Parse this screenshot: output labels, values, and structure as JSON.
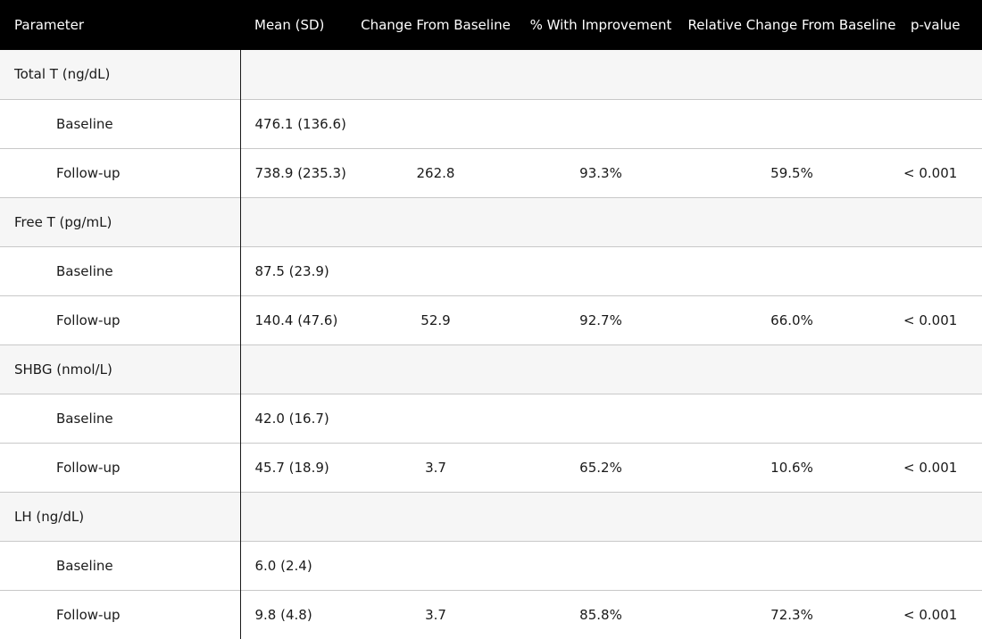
{
  "headers": {
    "parameter": "Parameter",
    "mean": "Mean (SD)",
    "change": "Change From Baseline",
    "improvement": "% With Improvement",
    "relative": "Relative Change From Baseline",
    "pvalue": "p-value"
  },
  "groups": [
    {
      "name": "Total T (ng/dL)",
      "baseline": {
        "label": "Baseline",
        "mean": "476.1 (136.6)"
      },
      "followup": {
        "label": "Follow-up",
        "mean": "738.9 (235.3)",
        "change": "262.8",
        "improvement": "93.3%",
        "relative": "59.5%",
        "pvalue": "< 0.001"
      }
    },
    {
      "name": "Free T (pg/mL)",
      "baseline": {
        "label": "Baseline",
        "mean": "87.5 (23.9)"
      },
      "followup": {
        "label": "Follow-up",
        "mean": "140.4 (47.6)",
        "change": "52.9",
        "improvement": "92.7%",
        "relative": "66.0%",
        "pvalue": "< 0.001"
      }
    },
    {
      "name": "SHBG (nmol/L)",
      "baseline": {
        "label": "Baseline",
        "mean": "42.0 (16.7)"
      },
      "followup": {
        "label": "Follow-up",
        "mean": "45.7 (18.9)",
        "change": "3.7",
        "improvement": "65.2%",
        "relative": "10.6%",
        "pvalue": "< 0.001"
      }
    },
    {
      "name": "LH (ng/dL)",
      "baseline": {
        "label": "Baseline",
        "mean": "6.0 (2.4)"
      },
      "followup": {
        "label": "Follow-up",
        "mean": "9.8 (4.8)",
        "change": "3.7",
        "improvement": "85.8%",
        "relative": "72.3%",
        "pvalue": "< 0.001"
      }
    }
  ]
}
